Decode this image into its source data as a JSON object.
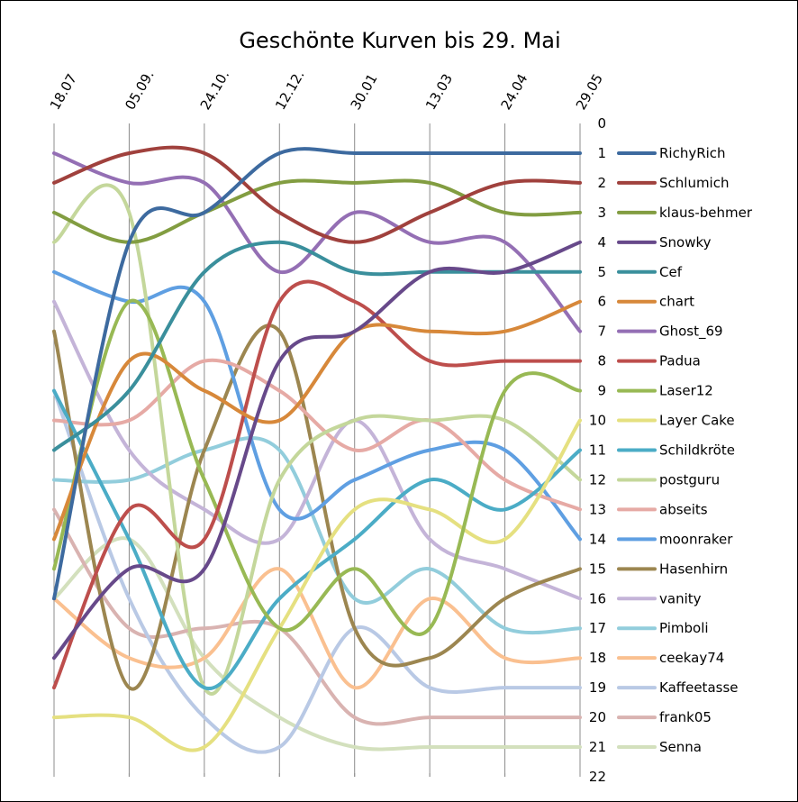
{
  "chart_data": {
    "type": "line",
    "title": "Geschönte Kurven bis 29. Mai",
    "x": [
      "18.07",
      "05.09.",
      "24.10.",
      "12.12.",
      "30.01",
      "13.03",
      "24.04",
      "29.05"
    ],
    "ylim": [
      0,
      22
    ],
    "y_reversed": true,
    "y_ticks": [
      "0",
      "1",
      "2",
      "3",
      "4",
      "5",
      "6",
      "7",
      "8",
      "9",
      "10",
      "11",
      "12",
      "13",
      "14",
      "15",
      "16",
      "17",
      "18",
      "19",
      "20",
      "21",
      "22"
    ],
    "grid": "vertical",
    "legend_position": "right",
    "series": [
      {
        "name": "RichyRich",
        "color": "#3d6a9f",
        "values": [
          16,
          4,
          3,
          1,
          1,
          1,
          1,
          1
        ]
      },
      {
        "name": "Schlumich",
        "color": "#a0413d",
        "values": [
          2,
          1,
          1,
          3,
          4,
          3,
          2,
          2
        ]
      },
      {
        "name": "klaus-behmer",
        "color": "#829d41",
        "values": [
          3,
          4,
          3,
          2,
          2,
          2,
          3,
          3
        ]
      },
      {
        "name": "Snowky",
        "color": "#67498a",
        "values": [
          18,
          15,
          15,
          8,
          7,
          5,
          5,
          4
        ]
      },
      {
        "name": "Cef",
        "color": "#3a8f9c",
        "values": [
          11,
          9,
          5,
          4,
          5,
          5,
          5,
          5
        ]
      },
      {
        "name": "chart",
        "color": "#d7883a",
        "values": [
          14,
          8,
          9,
          10,
          7,
          7,
          7,
          6
        ]
      },
      {
        "name": "Ghost_69",
        "color": "#946fb4",
        "values": [
          1,
          2,
          2,
          5,
          3,
          4,
          4,
          7
        ]
      },
      {
        "name": "Padua",
        "color": "#bd4e4c",
        "values": [
          19,
          13,
          14,
          6,
          6,
          8,
          8,
          8
        ]
      },
      {
        "name": "Laser12",
        "color": "#98b954",
        "values": [
          15,
          6,
          12,
          17,
          15,
          17,
          9,
          9
        ]
      },
      {
        "name": "Layer Cake",
        "color": "#e5e080",
        "values": [
          20,
          20,
          21,
          17,
          13,
          13,
          14,
          10
        ]
      },
      {
        "name": "Schildkröte",
        "color": "#4bacc6",
        "values": [
          9,
          14,
          19,
          16,
          14,
          12,
          13,
          11
        ]
      },
      {
        "name": "postguru",
        "color": "#c4d79b",
        "values": [
          4,
          3,
          19,
          12,
          10,
          10,
          10,
          12
        ]
      },
      {
        "name": "abseits",
        "color": "#e6aaa5",
        "values": [
          10,
          10,
          8,
          9,
          11,
          10,
          12,
          13
        ]
      },
      {
        "name": "moonraker",
        "color": "#5f9fe2",
        "values": [
          5,
          6,
          6,
          13,
          12,
          11,
          11,
          14
        ]
      },
      {
        "name": "Hasenhirn",
        "color": "#9c8650",
        "values": [
          7,
          19,
          11,
          7,
          17,
          18,
          16,
          15
        ]
      },
      {
        "name": "vanity",
        "color": "#c4b4d8",
        "values": [
          6,
          11,
          13,
          14,
          10,
          14,
          15,
          16
        ]
      },
      {
        "name": "Pimboli",
        "color": "#92cddc",
        "values": [
          12,
          12,
          11,
          11,
          16,
          15,
          17,
          17
        ]
      },
      {
        "name": "ceekay74",
        "color": "#fac090",
        "values": [
          16,
          18,
          18,
          15,
          19,
          16,
          18,
          18
        ]
      },
      {
        "name": "Kaffeetasse",
        "color": "#b9c9e5",
        "values": [
          9,
          16,
          20,
          21,
          17,
          19,
          19,
          19
        ]
      },
      {
        "name": "frank05",
        "color": "#d9b3b1",
        "values": [
          13,
          17,
          17,
          17,
          20,
          20,
          20,
          20
        ]
      },
      {
        "name": "Senna",
        "color": "#d3e0bd",
        "values": [
          16,
          14,
          18,
          20,
          21,
          21,
          21,
          21
        ]
      }
    ]
  }
}
